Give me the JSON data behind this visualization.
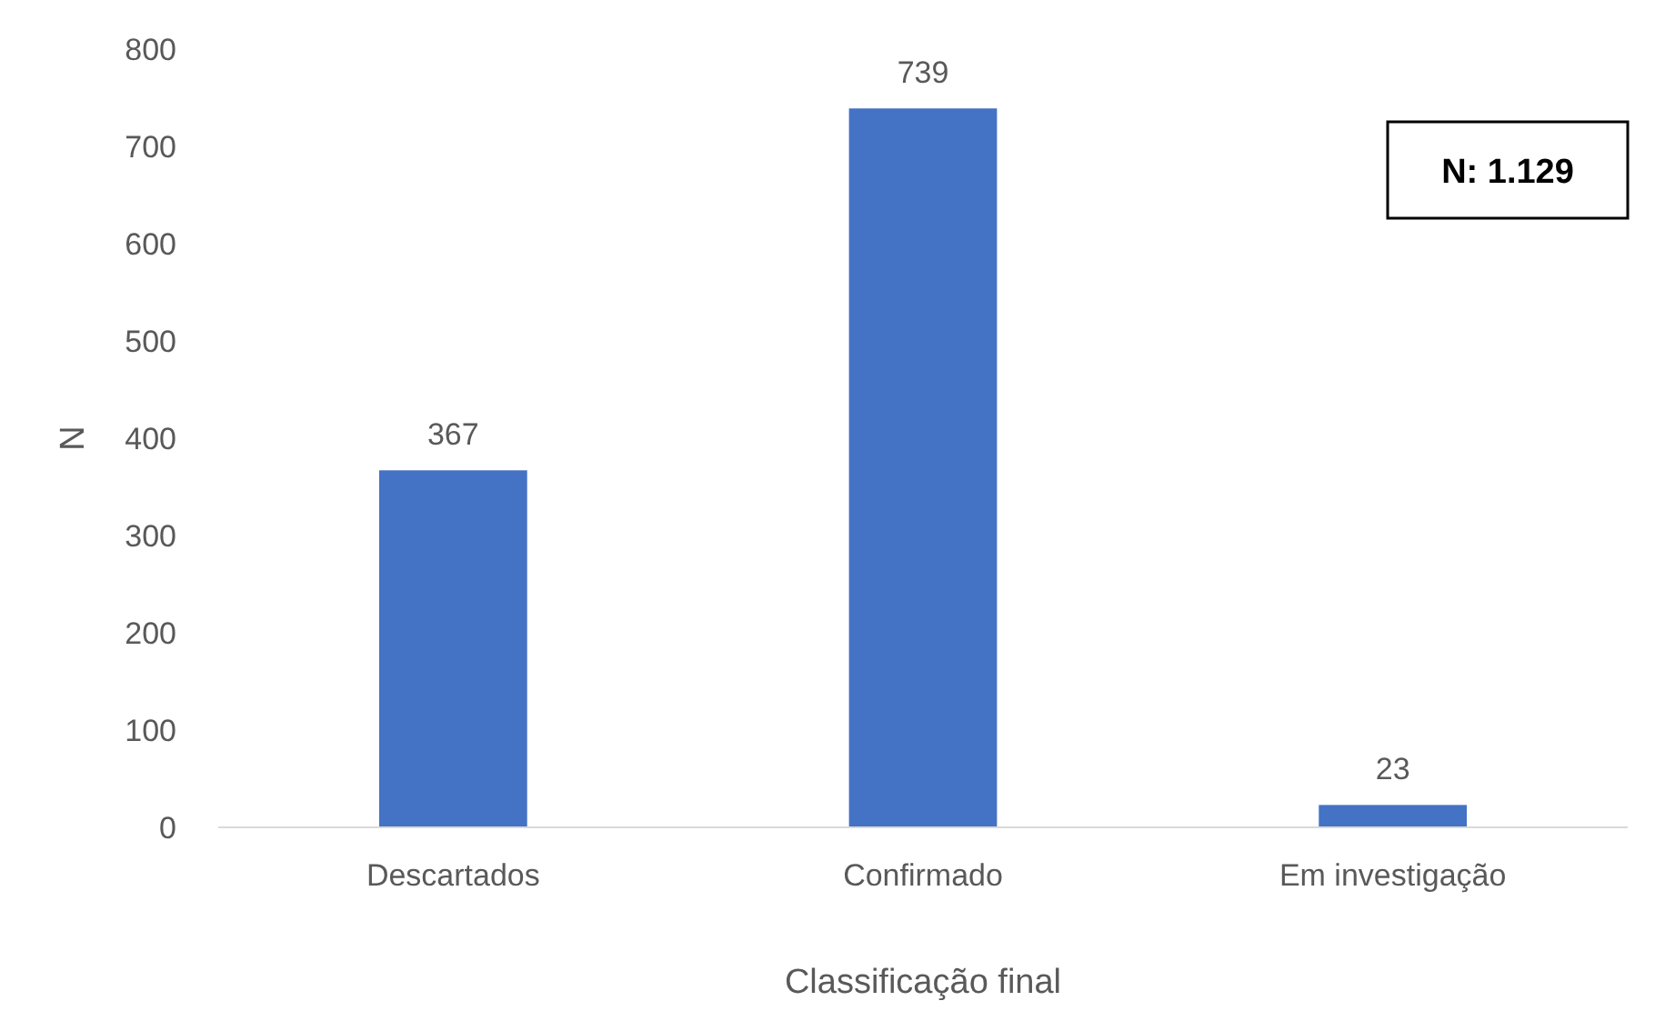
{
  "chart_data": {
    "type": "bar",
    "xlabel": "Classificação final",
    "ylabel": "N",
    "categories": [
      "Descartados",
      "Confirmado",
      "Em investigação"
    ],
    "values": [
      367,
      739,
      23
    ],
    "color": "#4472c4",
    "ylim": [
      0,
      800
    ],
    "yticks": [
      0,
      100,
      200,
      300,
      400,
      500,
      600,
      700,
      800
    ],
    "data_labels": true,
    "grid": false,
    "annotations": [
      "N: 1.129"
    ]
  }
}
